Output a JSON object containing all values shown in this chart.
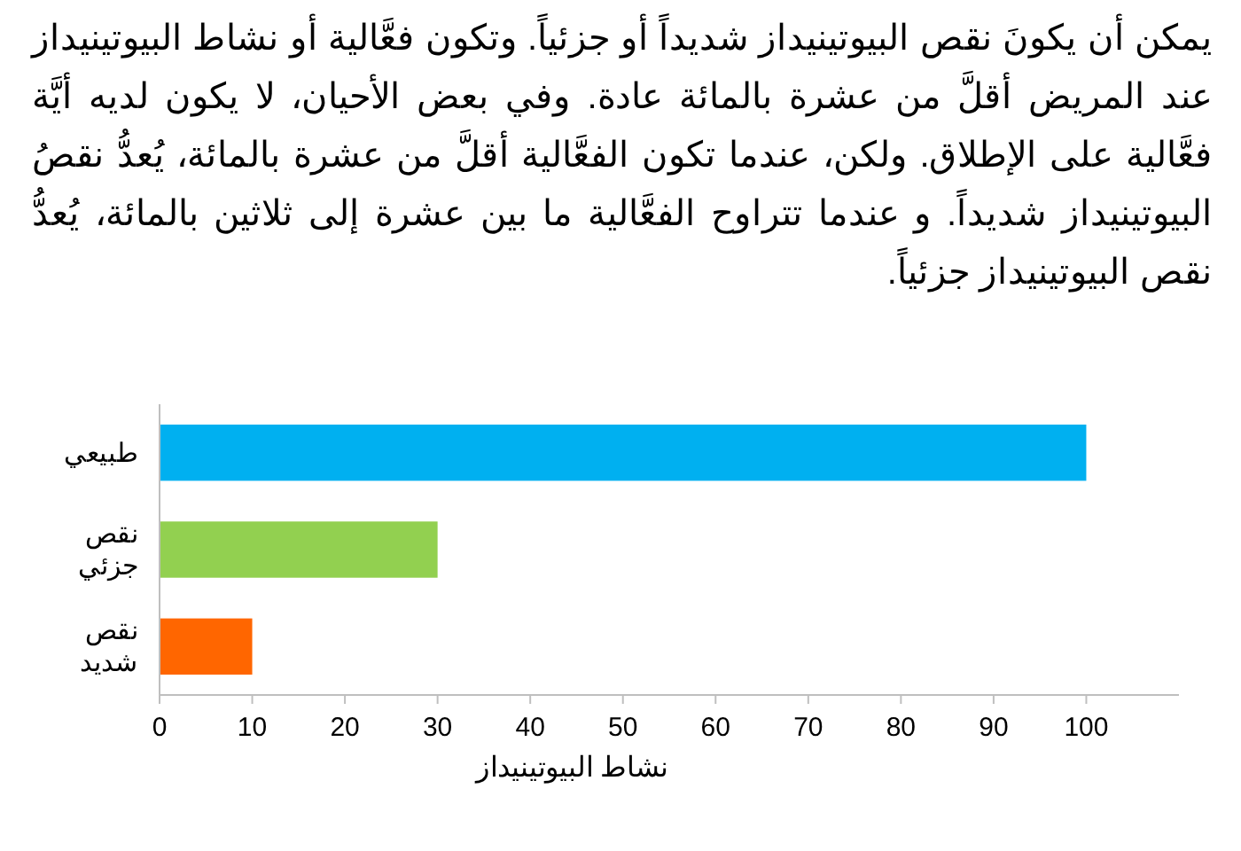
{
  "chart_data": {
    "type": "bar",
    "orientation": "horizontal",
    "title": "يمكن أن يكونَ نقص البيوتينيداز شديداً أو جزئياً. وتكون فعَّالية أو نشاط البيوتينيداز عند المريض أقلَّ من عشرة بالمائة عادة. وفي بعض الأحيان، لا يكون لديه أيَّة فعَّالية على الإطلاق. ولكن، عندما تكون الفعَّالية أقلَّ من عشرة بالمائة، يُعدُّ نقصُ البيوتينيداز شديداً. و عندما تتراوح الفعَّالية ما بين عشرة إلى ثلاثين بالمائة، يُعدُّ نقص البيوتينيداز جزئياً.",
    "categories": [
      "طبيعي",
      "نقص جزئي",
      "نقص شديد"
    ],
    "values": [
      100,
      30,
      10
    ],
    "colors": [
      "#00b0f0",
      "#92d050",
      "#ff6600"
    ],
    "xlabel": "نشاط البيوتينيداز",
    "xlim": [
      0,
      110
    ],
    "xticks": [
      0,
      10,
      20,
      30,
      40,
      50,
      60,
      70,
      80,
      90,
      100
    ],
    "grid": false
  }
}
